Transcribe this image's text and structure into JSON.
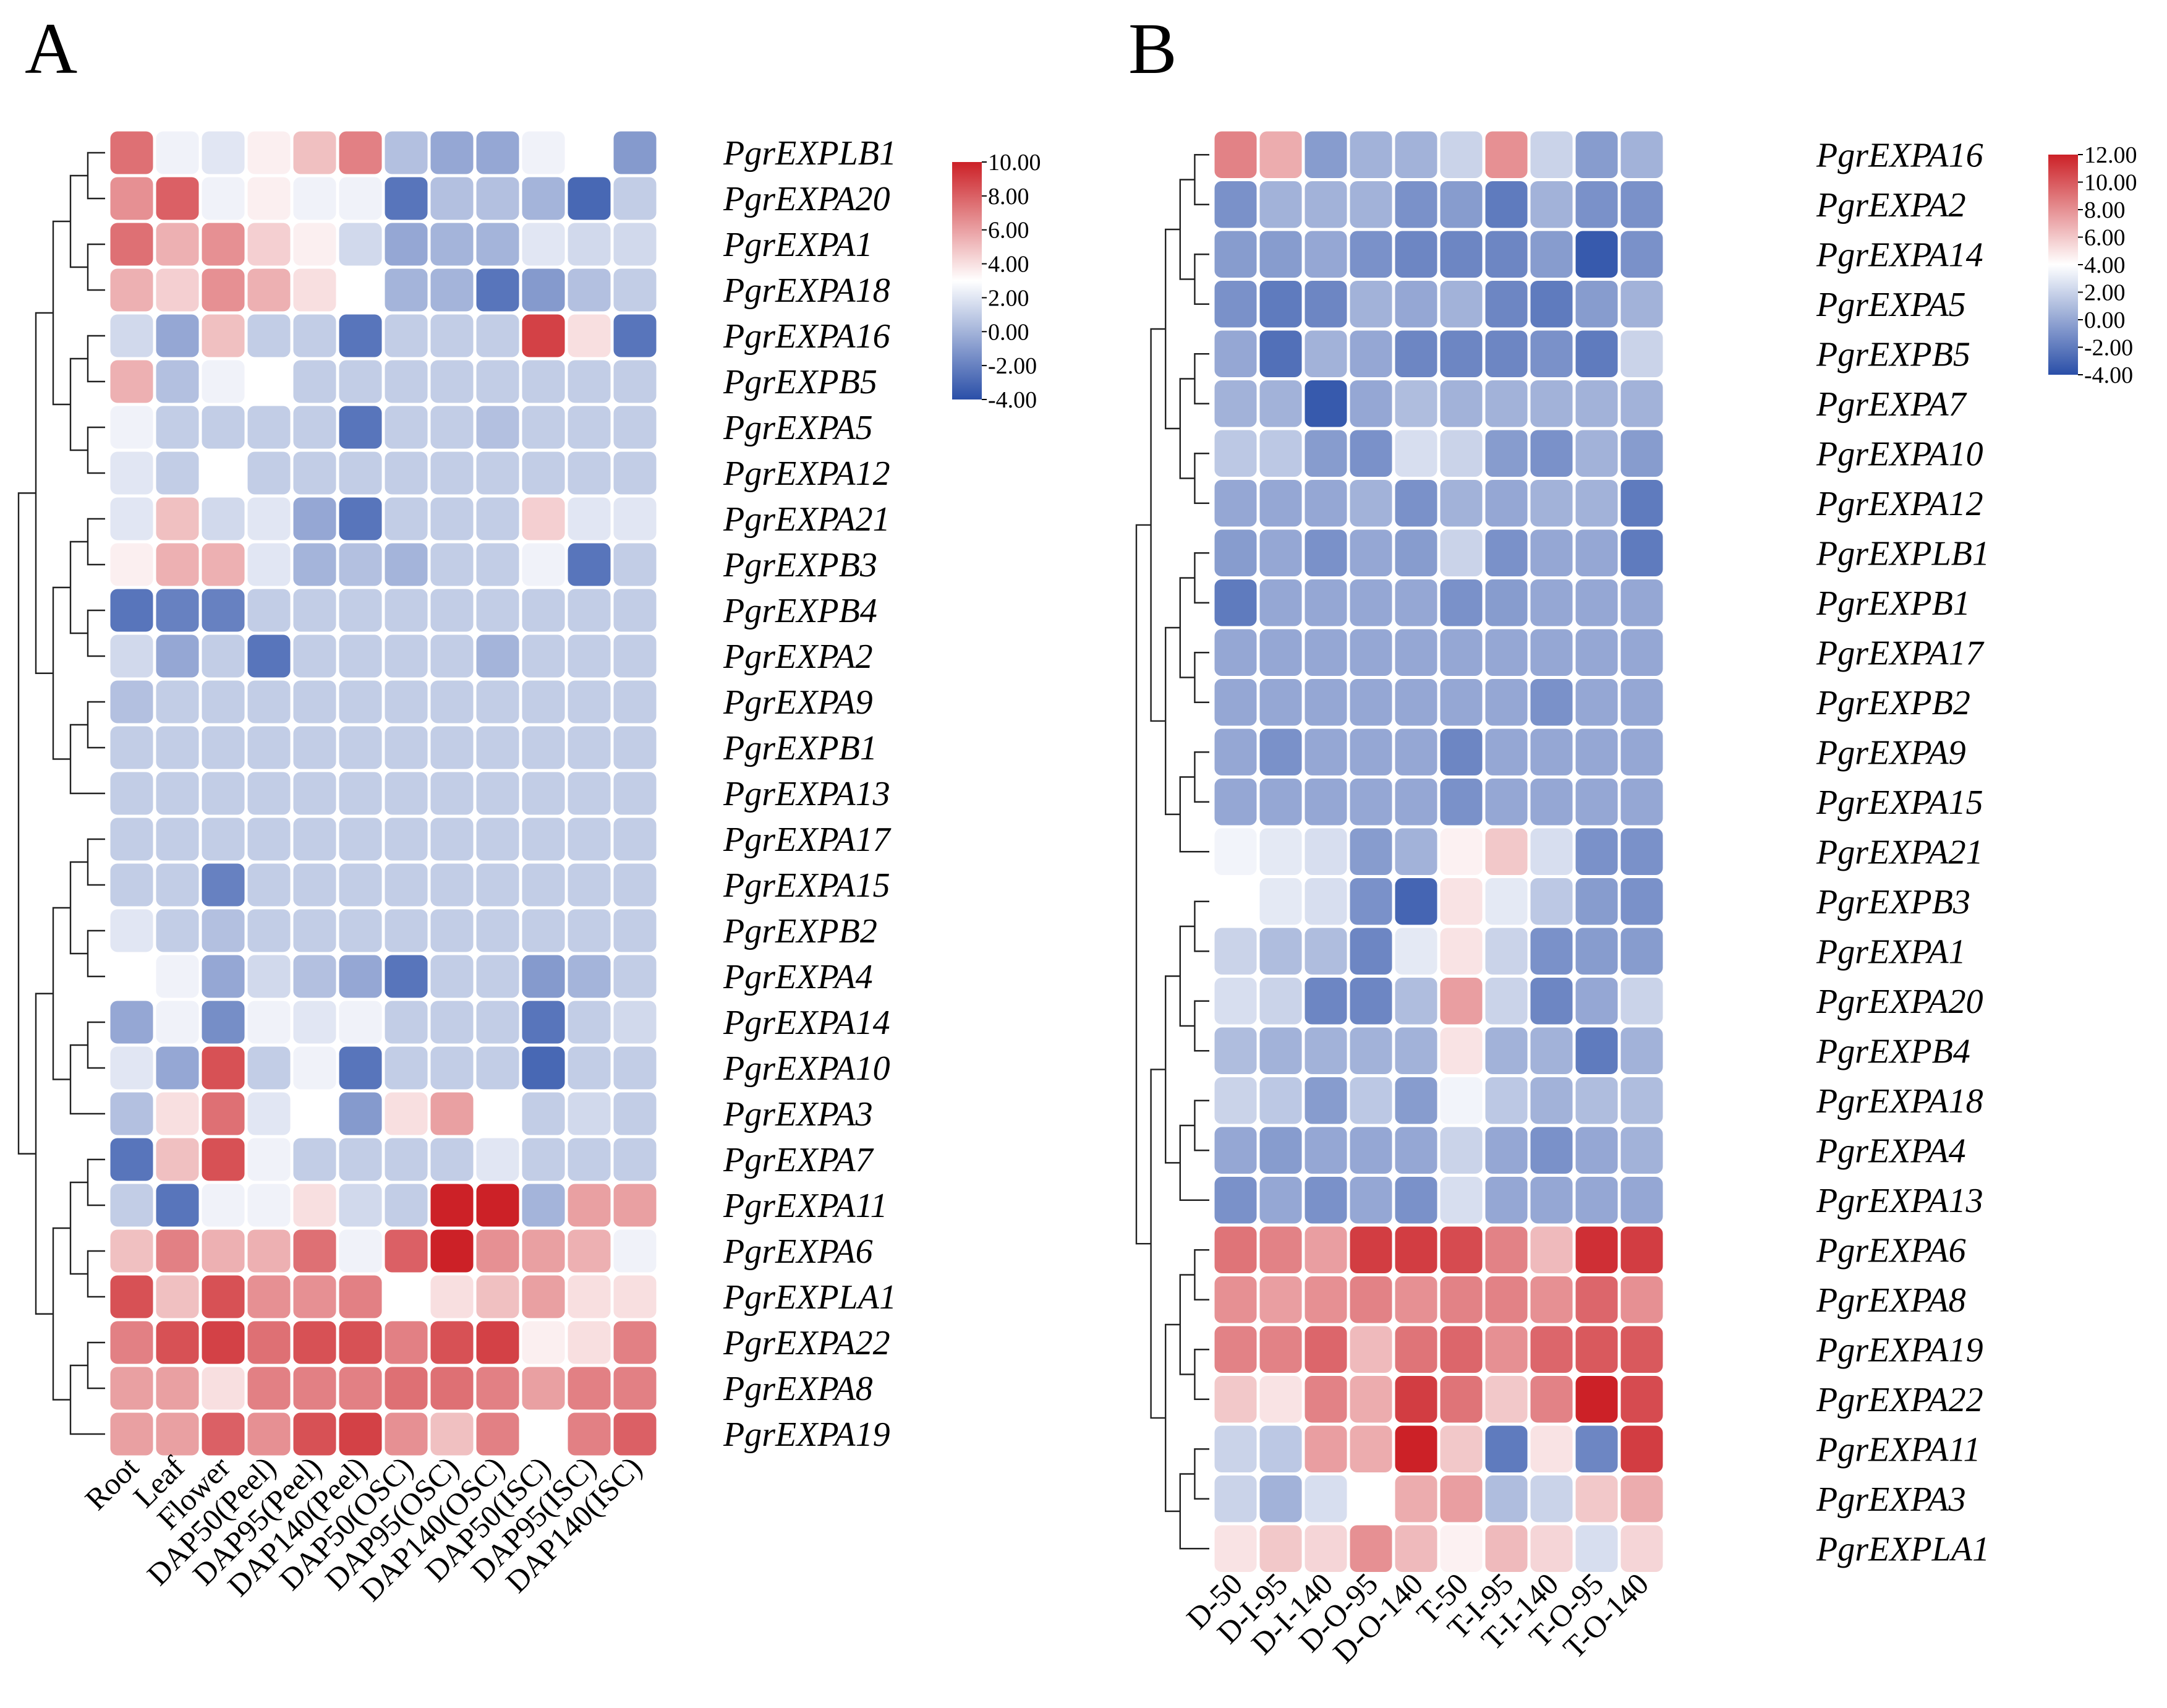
{
  "figure": {
    "panel_labels": [
      "A",
      "B"
    ]
  },
  "chart_data": [
    {
      "type": "heatmap",
      "panel": "A",
      "rows": [
        "PgrEXPLB1",
        "PgrEXPA20",
        "PgrEXPA1",
        "PgrEXPA18",
        "PgrEXPA16",
        "PgrEXPB5",
        "PgrEXPA5",
        "PgrEXPA12",
        "PgrEXPA21",
        "PgrEXPB3",
        "PgrEXPB4",
        "PgrEXPA2",
        "PgrEXPA9",
        "PgrEXPB1",
        "PgrEXPA13",
        "PgrEXPA17",
        "PgrEXPA15",
        "PgrEXPB2",
        "PgrEXPA4",
        "PgrEXPA14",
        "PgrEXPA10",
        "PgrEXPA3",
        "PgrEXPA7",
        "PgrEXPA11",
        "PgrEXPA6",
        "PgrEXPLA1",
        "PgrEXPA22",
        "PgrEXPA8",
        "PgrEXPA19"
      ],
      "columns": [
        "Root",
        "Leaf",
        "Flower",
        "DAP50(Peel)",
        "DAP95(Peel)",
        "DAP140(Peel)",
        "DAP50(OSC)",
        "DAP95(OSC)",
        "DAP140(OSC)",
        "DAP50(ISC)",
        "DAP95(ISC)",
        "DAP140(ISC)"
      ],
      "values": [
        [
          7.5,
          2.5,
          2.0,
          3.5,
          5.0,
          7.0,
          0.5,
          -0.5,
          -0.5,
          2.5,
          3.0,
          -1.0
        ],
        [
          6.5,
          8.0,
          2.5,
          3.5,
          2.5,
          2.5,
          -2.5,
          0.5,
          0.5,
          0.0,
          -3.0,
          1.0
        ],
        [
          7.5,
          5.5,
          6.5,
          4.5,
          3.5,
          1.5,
          -0.5,
          0.0,
          0.0,
          2.0,
          1.5,
          1.5
        ],
        [
          5.5,
          4.5,
          6.5,
          5.5,
          4.0,
          3.0,
          0.0,
          0.0,
          -2.5,
          -1.0,
          0.5,
          1.0
        ],
        [
          1.5,
          -0.5,
          5.0,
          1.0,
          1.0,
          -2.5,
          1.0,
          1.0,
          1.0,
          9.0,
          4.0,
          -2.5
        ],
        [
          5.5,
          0.5,
          2.5,
          3.0,
          1.0,
          1.0,
          1.0,
          1.0,
          1.0,
          1.0,
          1.0,
          1.0
        ],
        [
          2.5,
          1.0,
          1.0,
          1.0,
          1.0,
          -2.5,
          1.0,
          1.0,
          0.5,
          1.0,
          1.0,
          1.0
        ],
        [
          2.0,
          1.0,
          3.0,
          1.0,
          1.0,
          1.0,
          1.0,
          1.0,
          1.0,
          1.0,
          1.0,
          1.0
        ],
        [
          2.0,
          5.0,
          1.5,
          2.0,
          -0.5,
          -2.5,
          1.0,
          1.0,
          1.0,
          4.5,
          2.0,
          2.0
        ],
        [
          3.5,
          5.5,
          5.5,
          2.0,
          0.0,
          0.5,
          0.0,
          1.0,
          1.0,
          2.5,
          -2.5,
          1.0
        ],
        [
          -2.5,
          -2.0,
          -2.0,
          1.0,
          1.0,
          1.0,
          1.0,
          1.0,
          1.0,
          1.0,
          1.0,
          1.0
        ],
        [
          1.5,
          -0.5,
          1.0,
          -2.5,
          1.0,
          1.0,
          1.0,
          1.0,
          0.0,
          1.0,
          1.0,
          1.0
        ],
        [
          0.5,
          1.0,
          1.0,
          1.0,
          1.0,
          1.0,
          1.0,
          1.0,
          1.0,
          1.0,
          1.0,
          1.0
        ],
        [
          1.0,
          1.0,
          1.0,
          1.0,
          1.0,
          1.0,
          1.0,
          1.0,
          1.0,
          1.0,
          1.0,
          1.0
        ],
        [
          1.0,
          1.0,
          1.0,
          1.0,
          1.0,
          1.0,
          1.0,
          1.0,
          1.0,
          1.0,
          1.0,
          1.0
        ],
        [
          1.0,
          1.0,
          1.0,
          1.0,
          1.0,
          1.0,
          1.0,
          1.0,
          1.0,
          1.0,
          1.0,
          1.0
        ],
        [
          1.0,
          1.0,
          -2.0,
          1.0,
          1.0,
          1.0,
          1.0,
          1.0,
          1.0,
          1.0,
          1.0,
          1.0
        ],
        [
          2.0,
          1.0,
          0.5,
          1.0,
          1.0,
          1.0,
          1.0,
          1.0,
          1.0,
          1.0,
          1.0,
          1.0
        ],
        [
          3.0,
          2.5,
          -0.5,
          1.5,
          0.5,
          -0.5,
          -2.5,
          1.0,
          1.0,
          -1.0,
          0.0,
          1.0
        ],
        [
          -0.5,
          2.5,
          -1.5,
          2.5,
          2.0,
          2.5,
          1.0,
          1.0,
          1.0,
          -2.5,
          1.0,
          1.5
        ],
        [
          2.0,
          -0.5,
          8.5,
          1.0,
          2.5,
          -2.5,
          1.0,
          1.0,
          1.0,
          -3.0,
          1.0,
          1.0
        ],
        [
          0.5,
          4.0,
          7.5,
          2.0,
          3.0,
          -1.0,
          4.0,
          6.0,
          3.0,
          1.0,
          1.5,
          1.0
        ],
        [
          -2.5,
          5.0,
          8.5,
          2.5,
          1.0,
          1.0,
          1.0,
          1.0,
          2.0,
          1.0,
          1.0,
          1.0
        ],
        [
          1.0,
          -2.5,
          2.5,
          2.5,
          4.0,
          1.5,
          1.0,
          10.0,
          10.0,
          0.0,
          6.0,
          6.0
        ],
        [
          5.0,
          7.0,
          5.5,
          5.5,
          7.5,
          2.5,
          8.0,
          10.0,
          6.5,
          6.0,
          5.5,
          2.5
        ],
        [
          8.5,
          5.0,
          8.5,
          6.5,
          6.5,
          7.0,
          3.0,
          4.0,
          5.0,
          6.0,
          4.0,
          4.0
        ],
        [
          7.0,
          8.5,
          9.0,
          7.5,
          8.5,
          8.5,
          7.0,
          8.5,
          9.0,
          3.5,
          4.0,
          7.0
        ],
        [
          6.0,
          6.0,
          4.0,
          7.0,
          7.0,
          7.0,
          7.5,
          7.5,
          7.0,
          6.0,
          7.0,
          7.0
        ],
        [
          6.0,
          6.0,
          8.0,
          6.5,
          8.5,
          9.0,
          6.5,
          5.0,
          7.0,
          3.0,
          7.0,
          8.0
        ]
      ],
      "colorbar": {
        "min": -4,
        "max": 10,
        "ticks": [
          "10.00",
          "8.00",
          "6.00",
          "4.00",
          "2.00",
          "0.00",
          "-2.00",
          "-4.00"
        ]
      },
      "colors": {
        "low": "#2a4fa8",
        "mid": "#ffffff",
        "high": "#cc2127"
      },
      "title": "",
      "xlabel": "",
      "ylabel": "",
      "dendrogram": "rows"
    },
    {
      "type": "heatmap",
      "panel": "B",
      "rows": [
        "PgrEXPA16",
        "PgrEXPA2",
        "PgrEXPA14",
        "PgrEXPA5",
        "PgrEXPB5",
        "PgrEXPA7",
        "PgrEXPA10",
        "PgrEXPA12",
        "PgrEXPLB1",
        "PgrEXPB1",
        "PgrEXPA17",
        "PgrEXPB2",
        "PgrEXPA9",
        "PgrEXPA15",
        "PgrEXPA21",
        "PgrEXPB3",
        "PgrEXPA1",
        "PgrEXPA20",
        "PgrEXPB4",
        "PgrEXPA18",
        "PgrEXPA4",
        "PgrEXPA13",
        "PgrEXPA6",
        "PgrEXPA8",
        "PgrEXPA19",
        "PgrEXPA22",
        "PgrEXPA11",
        "PgrEXPA3",
        "PgrEXPLA1"
      ],
      "columns": [
        "D-50",
        "D-I-95",
        "D-I-140",
        "D-O-95",
        "D-O-140",
        "T-50",
        "T-I-95",
        "T-I-140",
        "T-O-95",
        "T-O-140"
      ],
      "values": [
        [
          8.5,
          7.0,
          -0.5,
          0.5,
          0.5,
          2.0,
          8.0,
          2.0,
          -0.5,
          0.5
        ],
        [
          -1.0,
          0.5,
          0.5,
          0.5,
          -1.0,
          -0.5,
          -2.0,
          0.5,
          -1.0,
          -1.0
        ],
        [
          -0.5,
          -0.5,
          0.0,
          -1.0,
          -1.5,
          -1.5,
          -1.5,
          -0.5,
          -3.5,
          -1.0
        ],
        [
          -1.0,
          -2.0,
          -1.5,
          0.5,
          0.0,
          0.5,
          -1.5,
          -2.0,
          -0.5,
          0.5
        ],
        [
          0.0,
          -2.5,
          0.5,
          0.0,
          -1.5,
          -1.5,
          -1.5,
          -1.0,
          -2.0,
          2.0
        ],
        [
          0.5,
          0.5,
          -3.5,
          0.0,
          1.0,
          0.5,
          0.5,
          0.5,
          0.5,
          0.5
        ],
        [
          1.5,
          1.5,
          -0.5,
          -1.0,
          2.5,
          2.0,
          -0.5,
          -1.0,
          0.5,
          -0.5
        ],
        [
          0.0,
          0.0,
          0.0,
          0.5,
          -1.0,
          0.5,
          0.0,
          0.5,
          0.5,
          -2.0
        ],
        [
          -0.5,
          0.0,
          -1.0,
          0.0,
          -0.5,
          2.0,
          -1.0,
          0.0,
          0.0,
          -2.0
        ],
        [
          -2.0,
          0.0,
          0.0,
          0.0,
          0.0,
          -1.0,
          -0.5,
          0.0,
          0.0,
          0.0
        ],
        [
          0.0,
          0.0,
          0.0,
          0.0,
          0.0,
          0.0,
          0.0,
          0.0,
          0.0,
          0.0
        ],
        [
          0.0,
          0.0,
          0.0,
          0.0,
          0.0,
          0.0,
          0.0,
          -1.0,
          0.0,
          0.0
        ],
        [
          0.0,
          -1.0,
          0.0,
          0.0,
          0.0,
          -1.5,
          0.0,
          0.0,
          0.0,
          0.0
        ],
        [
          0.0,
          0.0,
          0.0,
          0.0,
          0.0,
          -1.0,
          0.0,
          0.0,
          0.0,
          0.0
        ],
        [
          3.5,
          3.0,
          2.5,
          -0.5,
          0.5,
          4.5,
          6.0,
          2.5,
          -1.0,
          -1.0
        ],
        [
          4.0,
          3.0,
          2.5,
          -1.0,
          -3.0,
          5.0,
          3.0,
          1.5,
          -0.5,
          -1.0
        ],
        [
          2.0,
          1.0,
          1.0,
          -1.5,
          3.0,
          5.0,
          2.0,
          -1.0,
          -0.5,
          -0.5
        ],
        [
          2.5,
          2.0,
          -1.5,
          -1.5,
          1.0,
          7.5,
          2.0,
          -1.5,
          0.0,
          2.0
        ],
        [
          1.0,
          0.5,
          0.5,
          0.5,
          0.5,
          5.0,
          0.5,
          0.5,
          -2.0,
          0.5
        ],
        [
          2.0,
          1.5,
          -0.5,
          1.5,
          -0.5,
          3.5,
          1.5,
          0.5,
          1.0,
          1.0
        ],
        [
          0.0,
          -0.5,
          0.0,
          0.0,
          0.0,
          2.0,
          0.0,
          -1.0,
          0.0,
          0.5
        ],
        [
          -1.0,
          0.0,
          -1.0,
          0.0,
          -1.0,
          2.5,
          0.0,
          0.0,
          0.0,
          0.0
        ],
        [
          9.0,
          8.5,
          7.5,
          11.0,
          11.0,
          10.5,
          8.5,
          6.5,
          11.5,
          11.0
        ],
        [
          8.0,
          7.5,
          8.0,
          8.5,
          8.0,
          8.5,
          8.5,
          8.0,
          9.5,
          8.0
        ],
        [
          8.5,
          8.5,
          9.5,
          6.5,
          9.0,
          9.5,
          8.0,
          9.5,
          10.0,
          10.0
        ],
        [
          6.0,
          5.0,
          8.5,
          7.0,
          11.0,
          9.0,
          6.0,
          8.5,
          12.0,
          10.5
        ],
        [
          2.0,
          1.5,
          7.5,
          7.0,
          12.0,
          6.0,
          -2.0,
          5.0,
          -1.5,
          11.0
        ],
        [
          2.0,
          0.5,
          2.5,
          4.0,
          7.0,
          7.5,
          1.0,
          2.0,
          6.0,
          7.0
        ],
        [
          5.0,
          6.0,
          5.5,
          8.0,
          6.5,
          4.5,
          6.5,
          5.5,
          2.5,
          5.5
        ]
      ],
      "colorbar": {
        "min": -4,
        "max": 12,
        "ticks": [
          "12.00",
          "10.00",
          "8.00",
          "6.00",
          "4.00",
          "2.00",
          "0.00",
          "-2.00",
          "-4.00"
        ]
      },
      "colors": {
        "low": "#2a4fa8",
        "mid": "#ffffff",
        "high": "#cc2127"
      },
      "title": "",
      "xlabel": "",
      "ylabel": "",
      "dendrogram": "rows"
    }
  ]
}
